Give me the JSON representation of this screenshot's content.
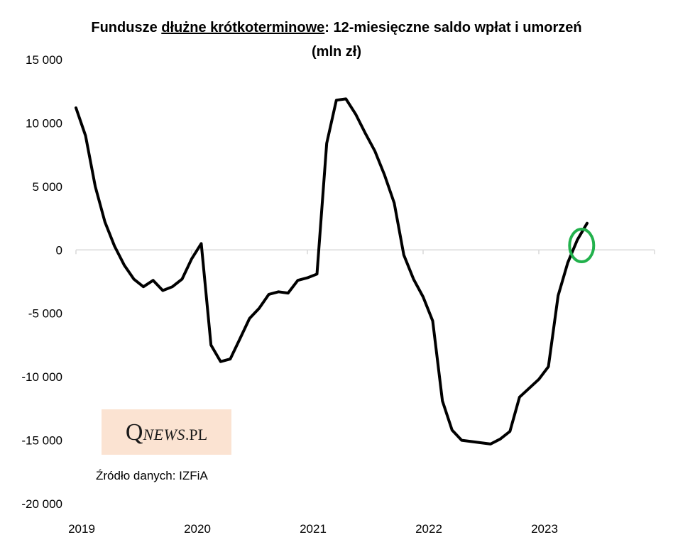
{
  "title": {
    "part1": "Fundusze ",
    "part2_underlined": "dłużne krótkoterminowe",
    "part3": ": 12-miesięczne saldo wpłat i umorzeń",
    "line2": "(mln zł)"
  },
  "logo": {
    "q": "Q",
    "news": "NEWS",
    "pl": ".PL"
  },
  "source": "Źródło danych: IZFiA",
  "colors": {
    "line": "#000000",
    "zero_axis": "#d9d9d9",
    "highlight_circle": "#22b14c",
    "logo_bg": "#fbe3d2"
  },
  "chart_data": {
    "type": "line",
    "title": "Fundusze dłużne krótkoterminowe: 12-miesięczne saldo wpłat i umorzeń (mln zł)",
    "ylim": [
      -20000,
      15000
    ],
    "yticks": [
      15000,
      10000,
      5000,
      0,
      -5000,
      -10000,
      -15000,
      -20000
    ],
    "ytick_labels": [
      "15 000",
      "10 000",
      "5 000",
      "0",
      "-5 000",
      "-10 000",
      "-15 000",
      "-20 000"
    ],
    "xtick_labels": [
      "2019",
      "2020",
      "2021",
      "2022",
      "2023"
    ],
    "grid": false,
    "series": [
      {
        "x": [
          2019.0,
          2019.083,
          2019.167,
          2019.25,
          2019.333,
          2019.417,
          2019.5,
          2019.583,
          2019.667,
          2019.75,
          2019.833,
          2019.917,
          2020.0,
          2020.083,
          2020.167,
          2020.25,
          2020.333,
          2020.417,
          2020.5,
          2020.583,
          2020.667,
          2020.75,
          2020.833,
          2020.917,
          2021.0,
          2021.083,
          2021.167,
          2021.25,
          2021.333,
          2021.417,
          2021.5,
          2021.583,
          2021.667,
          2021.75,
          2021.833,
          2021.917,
          2022.0,
          2022.083,
          2022.167,
          2022.25,
          2022.333,
          2022.417,
          2022.5,
          2022.583,
          2022.667,
          2022.75,
          2022.833,
          2022.917,
          2023.0,
          2023.083,
          2023.167,
          2023.25,
          2023.333,
          2023.417
        ],
        "values": [
          11200,
          9000,
          5000,
          2200,
          300,
          -1200,
          -2300,
          -2900,
          -2400,
          -3200,
          -2900,
          -2300,
          -700,
          500,
          -7500,
          -8800,
          -8600,
          -7000,
          -5400,
          -4600,
          -3500,
          -3300,
          -3400,
          -2400,
          -2200,
          -1900,
          8400,
          11800,
          11900,
          10700,
          9200,
          7800,
          5900,
          3700,
          -400,
          -2300,
          -3700,
          -5600,
          -11900,
          -14200,
          -15000,
          -15100,
          -15200,
          -15300,
          -14900,
          -14300,
          -11600,
          -10900,
          -10200,
          -9200,
          -3600,
          -1000,
          800,
          2100
        ]
      }
    ],
    "annotation": "green circle around the zero crossing in 2023"
  }
}
